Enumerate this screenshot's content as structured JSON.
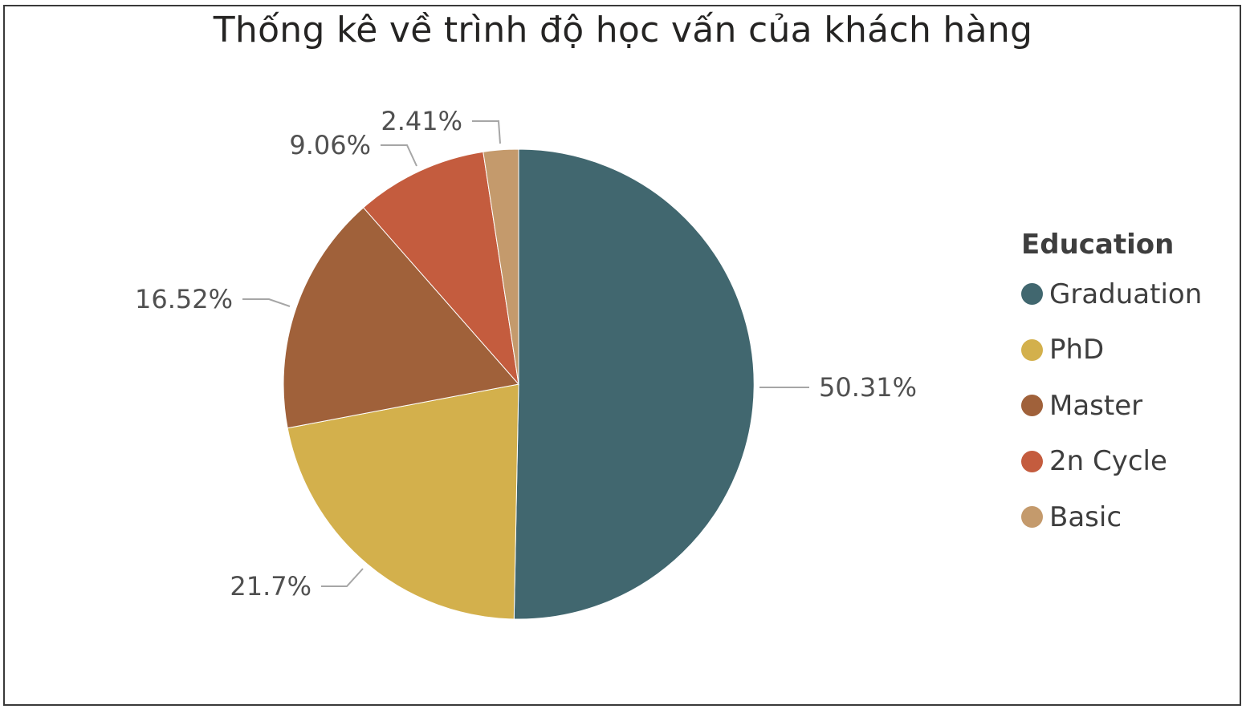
{
  "chart_data": {
    "type": "pie",
    "title": "Thống kê về trình độ học vấn của khách hàng",
    "legend_title": "Education",
    "legend_position": "right",
    "slices": [
      {
        "label": "Graduation",
        "value": 50.31,
        "data_label": "50.31%",
        "color": "#41676f"
      },
      {
        "label": "PhD",
        "value": 21.7,
        "data_label": "21.7%",
        "color": "#d3b04c"
      },
      {
        "label": "Master",
        "value": 16.52,
        "data_label": "16.52%",
        "color": "#a0613a"
      },
      {
        "label": "2n Cycle",
        "value": 9.06,
        "data_label": "9.06%",
        "color": "#c45c3e"
      },
      {
        "label": "Basic",
        "value": 2.41,
        "data_label": "2.41%",
        "color": "#c49a6c"
      }
    ]
  }
}
